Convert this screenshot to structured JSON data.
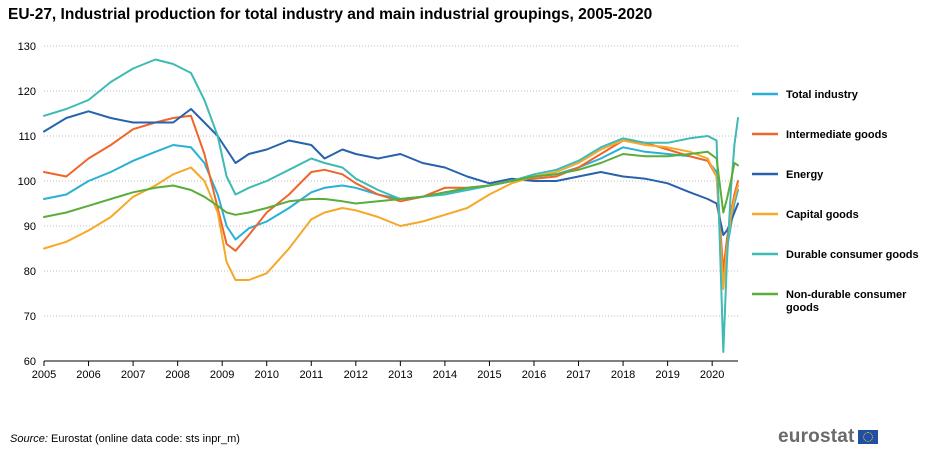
{
  "title": "EU-27, Industrial production for total industry and main industrial groupings, 2005-2020",
  "source_label": "Source:",
  "source_text": "Eurostat (online data code: sts inpr_m)",
  "brand": "eurostat",
  "colors": {
    "total": "#2ab0d6",
    "intermediate": "#f0652b",
    "energy": "#2762ad",
    "capital": "#f5a829",
    "durable": "#3fbab4",
    "nondurable": "#5aad3b",
    "grid": "#bdbdbd",
    "axis": "#000000"
  },
  "chart_data": {
    "type": "line",
    "title": "EU-27, Industrial production for total industry and main industrial groupings, 2005-2020",
    "xlabel": "",
    "ylabel": "",
    "ylim": [
      60,
      130
    ],
    "yticks": [
      60,
      70,
      80,
      90,
      100,
      110,
      120,
      130
    ],
    "xlim": [
      2005.0,
      2020.58
    ],
    "xticks": [
      "2005",
      "2006",
      "2007",
      "2008",
      "2009",
      "2010",
      "2011",
      "2012",
      "2013",
      "2014",
      "2015",
      "2016",
      "2017",
      "2018",
      "2019",
      "2020"
    ],
    "grid": "horizontal dotted",
    "legend_position": "right",
    "series": [
      {
        "key": "total",
        "name": "Total industry",
        "x": [
          2005.0,
          2005.5,
          2006.0,
          2006.5,
          2007.0,
          2007.5,
          2007.9,
          2008.3,
          2008.6,
          2008.9,
          2009.1,
          2009.3,
          2009.6,
          2010.0,
          2010.5,
          2011.0,
          2011.3,
          2011.7,
          2012.0,
          2012.5,
          2013.0,
          2013.5,
          2014.0,
          2014.5,
          2015.0,
          2015.5,
          2016.0,
          2016.5,
          2017.0,
          2017.5,
          2018.0,
          2018.5,
          2019.0,
          2019.5,
          2019.9,
          2020.1,
          2020.25,
          2020.33,
          2020.42,
          2020.5,
          2020.58
        ],
        "values": [
          96,
          97,
          100,
          102,
          104.5,
          106.5,
          108,
          107.5,
          104,
          97,
          90,
          87,
          89.5,
          91,
          94,
          97.5,
          98.5,
          99,
          98.5,
          97,
          96,
          96.5,
          97.5,
          98,
          99,
          100,
          101,
          101.5,
          103,
          105,
          107.5,
          106.5,
          106,
          105.5,
          104.5,
          102,
          78,
          85,
          90,
          95,
          98
        ]
      },
      {
        "key": "intermediate",
        "name": "Intermediate goods",
        "x": [
          2005.0,
          2005.5,
          2006.0,
          2006.5,
          2007.0,
          2007.5,
          2007.9,
          2008.3,
          2008.6,
          2008.9,
          2009.1,
          2009.3,
          2009.6,
          2010.0,
          2010.5,
          2011.0,
          2011.3,
          2011.7,
          2012.0,
          2012.5,
          2013.0,
          2013.5,
          2014.0,
          2014.5,
          2015.0,
          2015.5,
          2016.0,
          2016.5,
          2017.0,
          2017.5,
          2018.0,
          2018.5,
          2019.0,
          2019.5,
          2019.9,
          2020.1,
          2020.25,
          2020.33,
          2020.42,
          2020.5,
          2020.58
        ],
        "values": [
          102,
          101,
          105,
          108,
          111.5,
          113,
          114,
          114.5,
          106,
          94,
          86,
          84.5,
          88,
          93,
          97,
          102,
          102.5,
          101.5,
          99.5,
          97,
          95.5,
          96.5,
          98.5,
          98.5,
          99,
          100,
          100.5,
          101,
          103,
          106,
          109,
          108.5,
          107,
          105.5,
          104.5,
          101,
          80,
          87,
          93,
          97,
          100
        ]
      },
      {
        "key": "energy",
        "name": "Energy",
        "x": [
          2005.0,
          2005.5,
          2006.0,
          2006.5,
          2007.0,
          2007.5,
          2007.9,
          2008.3,
          2008.6,
          2008.9,
          2009.1,
          2009.3,
          2009.6,
          2010.0,
          2010.5,
          2011.0,
          2011.3,
          2011.7,
          2012.0,
          2012.5,
          2013.0,
          2013.5,
          2014.0,
          2014.5,
          2015.0,
          2015.5,
          2016.0,
          2016.5,
          2017.0,
          2017.5,
          2018.0,
          2018.5,
          2019.0,
          2019.5,
          2019.9,
          2020.1,
          2020.25,
          2020.33,
          2020.42,
          2020.5,
          2020.58
        ],
        "values": [
          111,
          114,
          115.5,
          114,
          113,
          113,
          113,
          116,
          113,
          110,
          107,
          104,
          106,
          107,
          109,
          108,
          105,
          107,
          106,
          105,
          106,
          104,
          103,
          101,
          99.5,
          100.5,
          100,
          100,
          101,
          102,
          101,
          100.5,
          99.5,
          97.5,
          96,
          95,
          88,
          89,
          91,
          93,
          95
        ]
      },
      {
        "key": "capital",
        "name": "Capital goods",
        "x": [
          2005.0,
          2005.5,
          2006.0,
          2006.5,
          2007.0,
          2007.5,
          2007.9,
          2008.3,
          2008.6,
          2008.9,
          2009.1,
          2009.3,
          2009.6,
          2010.0,
          2010.5,
          2011.0,
          2011.3,
          2011.7,
          2012.0,
          2012.5,
          2013.0,
          2013.5,
          2014.0,
          2014.5,
          2015.0,
          2015.5,
          2016.0,
          2016.5,
          2017.0,
          2017.5,
          2018.0,
          2018.5,
          2019.0,
          2019.5,
          2019.9,
          2020.1,
          2020.25,
          2020.33,
          2020.42,
          2020.5,
          2020.58
        ],
        "values": [
          85,
          86.5,
          89,
          92,
          96.5,
          99,
          101.5,
          103,
          100,
          93,
          82,
          78,
          78,
          79.5,
          85,
          91.5,
          93,
          94,
          93.5,
          92,
          90,
          91,
          92.5,
          94,
          97,
          99.5,
          101,
          102,
          104,
          107,
          109,
          108,
          107.5,
          106.5,
          105,
          101,
          76,
          85,
          92,
          96,
          99
        ]
      },
      {
        "key": "durable",
        "name": "Durable consumer goods",
        "x": [
          2005.0,
          2005.5,
          2006.0,
          2006.5,
          2007.0,
          2007.5,
          2007.9,
          2008.3,
          2008.6,
          2008.9,
          2009.1,
          2009.3,
          2009.6,
          2010.0,
          2010.5,
          2011.0,
          2011.3,
          2011.7,
          2012.0,
          2012.5,
          2013.0,
          2013.5,
          2014.0,
          2014.5,
          2015.0,
          2015.5,
          2016.0,
          2016.5,
          2017.0,
          2017.5,
          2018.0,
          2018.5,
          2019.0,
          2019.5,
          2019.9,
          2020.1,
          2020.25,
          2020.33,
          2020.42,
          2020.5,
          2020.58
        ],
        "values": [
          114.5,
          116,
          118,
          122,
          125,
          127,
          126,
          124,
          118,
          110,
          101,
          97,
          98.5,
          100,
          102.5,
          105,
          104,
          103,
          100.5,
          98,
          96,
          96.5,
          97,
          98,
          99,
          100,
          101.5,
          102.5,
          104.5,
          107.5,
          109.5,
          108.5,
          108.5,
          109.5,
          110,
          109,
          62,
          82,
          98,
          108,
          114
        ]
      },
      {
        "key": "nondurable",
        "name": "Non-durable consumer goods",
        "x": [
          2005.0,
          2005.5,
          2006.0,
          2006.5,
          2007.0,
          2007.5,
          2007.9,
          2008.3,
          2008.6,
          2008.9,
          2009.1,
          2009.3,
          2009.6,
          2010.0,
          2010.5,
          2011.0,
          2011.3,
          2011.7,
          2012.0,
          2012.5,
          2013.0,
          2013.5,
          2014.0,
          2014.5,
          2015.0,
          2015.5,
          2016.0,
          2016.5,
          2017.0,
          2017.5,
          2018.0,
          2018.5,
          2019.0,
          2019.5,
          2019.9,
          2020.1,
          2020.25,
          2020.33,
          2020.42,
          2020.5,
          2020.58
        ],
        "values": [
          92,
          93,
          94.5,
          96,
          97.5,
          98.5,
          99,
          98,
          96.5,
          94.5,
          93,
          92.5,
          93,
          94,
          95.5,
          96,
          96,
          95.5,
          95,
          95.5,
          96,
          96.5,
          97.5,
          98.5,
          99,
          100,
          101,
          101.5,
          102.5,
          104,
          106,
          105.5,
          105.5,
          106,
          106.5,
          105,
          93,
          96,
          100,
          104,
          103.5
        ]
      }
    ]
  }
}
